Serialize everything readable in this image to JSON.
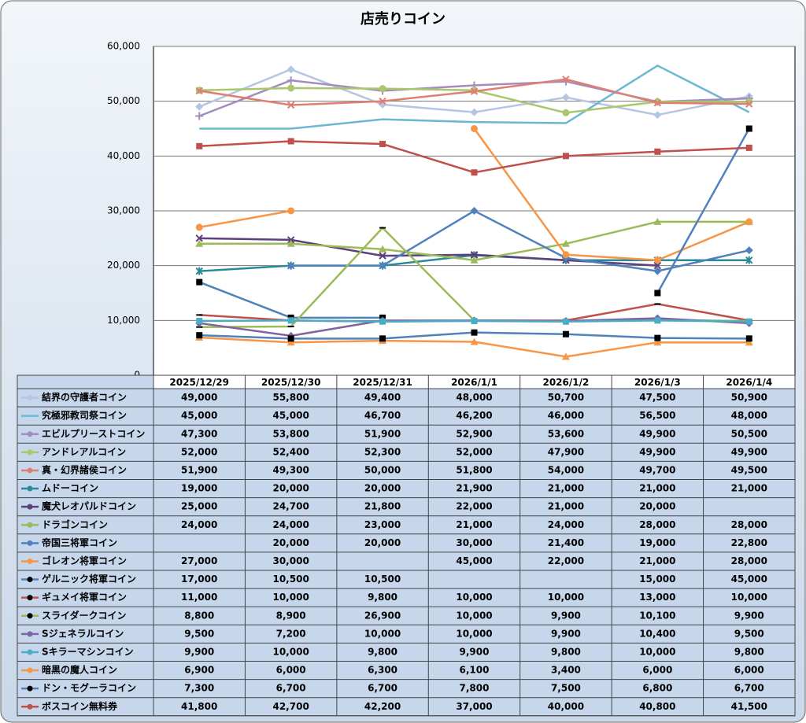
{
  "chart_data": {
    "type": "line",
    "title": "店売りコイン",
    "categories": [
      "2025/12/29",
      "2025/12/30",
      "2025/12/31",
      "2026/1/1",
      "2026/1/2",
      "2026/1/3",
      "2026/1/4"
    ],
    "ylim": [
      0,
      60000
    ],
    "yticks": [
      0,
      {
        "value": 10000,
        "label": "10,000"
      },
      {
        "value": 20000,
        "label": "20,000"
      },
      {
        "value": 30000,
        "label": "30,000"
      },
      {
        "value": 40000,
        "label": "40,000"
      },
      {
        "value": 50000,
        "label": "50,000"
      },
      {
        "value": 60000,
        "label": "60,000"
      }
    ],
    "grid": true,
    "series": [
      {
        "name": "結界の守護者コイン",
        "color": "#b4c6e4",
        "marker": "diamond",
        "values": [
          49000,
          55800,
          49400,
          48000,
          50700,
          47500,
          50900
        ],
        "value_labels": [
          "49,000",
          "55,800",
          "49,400",
          "48,000",
          "50,700",
          "47,500",
          "50,900"
        ]
      },
      {
        "name": "究極邪教司祭コイン",
        "color": "#6cb8d2",
        "marker": "none",
        "values": [
          45000,
          45000,
          46700,
          46200,
          46000,
          56500,
          48000
        ],
        "value_labels": [
          "45,000",
          "45,000",
          "46,700",
          "46,200",
          "46,000",
          "56,500",
          "48,000"
        ]
      },
      {
        "name": "エビルプリーストコイン",
        "color": "#a48cbf",
        "marker": "plus",
        "values": [
          47300,
          53800,
          51900,
          52900,
          53600,
          49900,
          50500
        ],
        "value_labels": [
          "47,300",
          "53,800",
          "51,900",
          "52,900",
          "53,600",
          "49,900",
          "50,500"
        ]
      },
      {
        "name": "アンドレアルコイン",
        "color": "#a9c76c",
        "marker": "circle",
        "values": [
          52000,
          52400,
          52300,
          52000,
          47900,
          49900,
          49900
        ],
        "value_labels": [
          "52,000",
          "52,400",
          "52,300",
          "52,000",
          "47,900",
          "49,900",
          "49,900"
        ]
      },
      {
        "name": "真・幻界諸侯コイン",
        "color": "#de7f72",
        "marker": "x",
        "values": [
          51900,
          49300,
          50000,
          51800,
          54000,
          49700,
          49500
        ],
        "value_labels": [
          "51,900",
          "49,300",
          "50,000",
          "51,800",
          "54,000",
          "49,700",
          "49,500"
        ]
      },
      {
        "name": "ムドーコイン",
        "color": "#2b8a9a",
        "marker": "star",
        "values": [
          19000,
          20000,
          20000,
          21900,
          21000,
          21000,
          21000
        ],
        "value_labels": [
          "19,000",
          "20,000",
          "20,000",
          "21,900",
          "21,000",
          "21,000",
          "21,000"
        ]
      },
      {
        "name": "魔犬レオパルドコイン",
        "color": "#5d3f7c",
        "marker": "x",
        "values": [
          25000,
          24700,
          21800,
          22000,
          21000,
          20000,
          null
        ],
        "value_labels": [
          "25,000",
          "24,700",
          "21,800",
          "22,000",
          "21,000",
          "20,000",
          null
        ]
      },
      {
        "name": "ドラゴンコイン",
        "color": "#9bbb59",
        "marker": "triangle",
        "values": [
          24000,
          24000,
          23000,
          21000,
          24000,
          28000,
          28000
        ],
        "value_labels": [
          "24,000",
          "24,000",
          "23,000",
          "21,000",
          "24,000",
          "28,000",
          "28,000"
        ]
      },
      {
        "name": "帝国三将軍コイン",
        "color": "#4f81bd",
        "marker": "diamond",
        "values": [
          null,
          20000,
          20000,
          30000,
          21400,
          19000,
          22800
        ],
        "value_labels": [
          null,
          "20,000",
          "20,000",
          "30,000",
          "21,400",
          "19,000",
          "22,800"
        ]
      },
      {
        "name": "ゴレオン将軍コイン",
        "color": "#f79646",
        "marker": "circle",
        "values": [
          27000,
          30000,
          null,
          45000,
          22000,
          21000,
          28000
        ],
        "value_labels": [
          "27,000",
          "30,000",
          null,
          "45,000",
          "22,000",
          "21,000",
          "28,000"
        ]
      },
      {
        "name": "ゲルニック将軍コイン",
        "color": "#4f81bd",
        "marker": "square",
        "marker_color": "#000000",
        "values": [
          17000,
          10500,
          10500,
          null,
          null,
          15000,
          45000
        ],
        "value_labels": [
          "17,000",
          "10,500",
          "10,500",
          null,
          null,
          "15,000",
          "45,000"
        ]
      },
      {
        "name": "ギュメイ将軍コイン",
        "color": "#c0504d",
        "marker": "dash",
        "marker_color": "#000000",
        "values": [
          11000,
          10000,
          9800,
          10000,
          10000,
          13000,
          10000
        ],
        "value_labels": [
          "11,000",
          "10,000",
          "9,800",
          "10,000",
          "10,000",
          "13,000",
          "10,000"
        ]
      },
      {
        "name": "スライダークコイン",
        "color": "#9bbb59",
        "marker": "dash",
        "marker_color": "#000000",
        "values": [
          8800,
          8900,
          26900,
          10000,
          9900,
          10100,
          9900
        ],
        "value_labels": [
          "8,800",
          "8,900",
          "26,900",
          "10,000",
          "9,900",
          "10,100",
          "9,900"
        ]
      },
      {
        "name": "Sジェネラルコイン",
        "color": "#8064a2",
        "marker": "diamond",
        "values": [
          9500,
          7200,
          10000,
          10000,
          9900,
          10400,
          9500
        ],
        "value_labels": [
          "9,500",
          "7,200",
          "10,000",
          "10,000",
          "9,900",
          "10,400",
          "9,500"
        ]
      },
      {
        "name": "Sキラーマシンコイン",
        "color": "#4bacc6",
        "marker": "square",
        "values": [
          9900,
          10000,
          9800,
          9900,
          9800,
          10000,
          9800
        ],
        "value_labels": [
          "9,900",
          "10,000",
          "9,800",
          "9,900",
          "9,800",
          "10,000",
          "9,800"
        ]
      },
      {
        "name": "暗黒の魔人コイン",
        "color": "#f79646",
        "marker": "triangle",
        "values": [
          6900,
          6000,
          6300,
          6100,
          3400,
          6000,
          6000
        ],
        "value_labels": [
          "6,900",
          "6,000",
          "6,300",
          "6,100",
          "3,400",
          "6,000",
          "6,000"
        ]
      },
      {
        "name": "ドン・モグーラコイン",
        "color": "#4f81bd",
        "marker": "square",
        "marker_color": "#000000",
        "values": [
          7300,
          6700,
          6700,
          7800,
          7500,
          6800,
          6700
        ],
        "value_labels": [
          "7,300",
          "6,700",
          "6,700",
          "7,800",
          "7,500",
          "6,800",
          "6,700"
        ]
      },
      {
        "name": "ボスコイン無料券",
        "color": "#c0504d",
        "marker": "square",
        "values": [
          41800,
          42700,
          42200,
          37000,
          40000,
          40800,
          41500
        ],
        "value_labels": [
          "41,800",
          "42,700",
          "42,200",
          "37,000",
          "40,000",
          "40,800",
          "41,500"
        ]
      }
    ]
  }
}
